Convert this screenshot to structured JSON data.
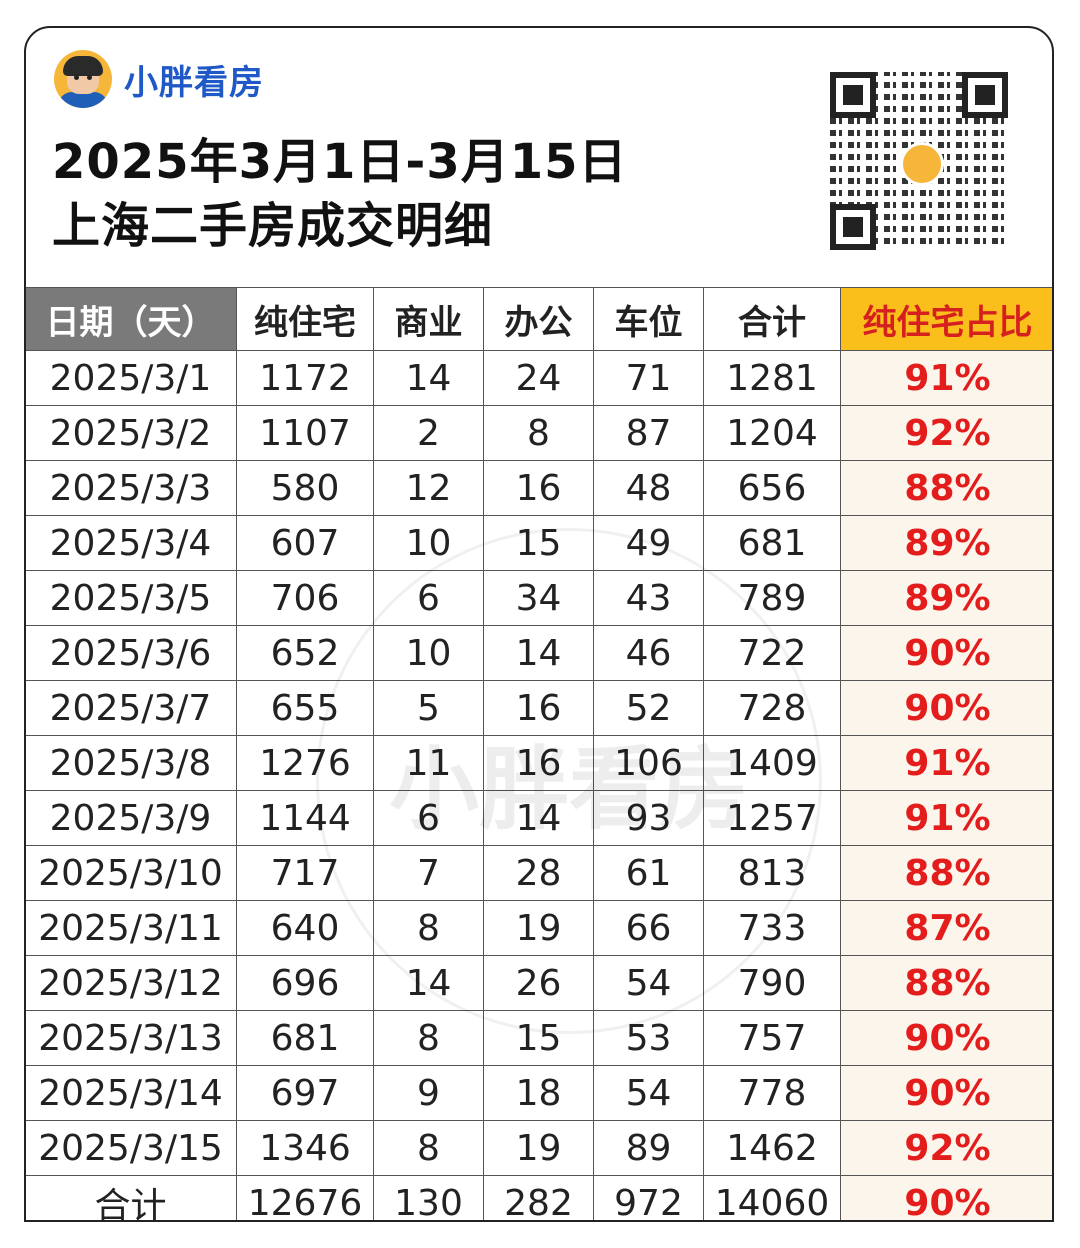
{
  "brand": {
    "name": "小胖看房",
    "avatar_icon": "cartoon-avatar-icon"
  },
  "title": {
    "line1": "2025年3月1日-3月15日",
    "line2": "上海二手房成交明细"
  },
  "qr": {
    "icon": "qr-code-icon"
  },
  "watermark": "小胖看房",
  "colors": {
    "header_gray": "#7a7a7a",
    "highlight_yellow": "#fbbf1c",
    "percent_red": "#e31c1c",
    "brand_blue": "#1f58c7"
  },
  "table": {
    "headers": [
      "日期（天）",
      "纯住宅",
      "商业",
      "办公",
      "车位",
      "合计",
      "纯住宅占比"
    ],
    "rows": [
      [
        "2025/3/1",
        "1172",
        "14",
        "24",
        "71",
        "1281",
        "91%"
      ],
      [
        "2025/3/2",
        "1107",
        "2",
        "8",
        "87",
        "1204",
        "92%"
      ],
      [
        "2025/3/3",
        "580",
        "12",
        "16",
        "48",
        "656",
        "88%"
      ],
      [
        "2025/3/4",
        "607",
        "10",
        "15",
        "49",
        "681",
        "89%"
      ],
      [
        "2025/3/5",
        "706",
        "6",
        "34",
        "43",
        "789",
        "89%"
      ],
      [
        "2025/3/6",
        "652",
        "10",
        "14",
        "46",
        "722",
        "90%"
      ],
      [
        "2025/3/7",
        "655",
        "5",
        "16",
        "52",
        "728",
        "90%"
      ],
      [
        "2025/3/8",
        "1276",
        "11",
        "16",
        "106",
        "1409",
        "91%"
      ],
      [
        "2025/3/9",
        "1144",
        "6",
        "14",
        "93",
        "1257",
        "91%"
      ],
      [
        "2025/3/10",
        "717",
        "7",
        "28",
        "61",
        "813",
        "88%"
      ],
      [
        "2025/3/11",
        "640",
        "8",
        "19",
        "66",
        "733",
        "87%"
      ],
      [
        "2025/3/12",
        "696",
        "14",
        "26",
        "54",
        "790",
        "88%"
      ],
      [
        "2025/3/13",
        "681",
        "8",
        "15",
        "53",
        "757",
        "90%"
      ],
      [
        "2025/3/14",
        "697",
        "9",
        "18",
        "54",
        "778",
        "90%"
      ],
      [
        "2025/3/15",
        "1346",
        "8",
        "19",
        "89",
        "1462",
        "92%"
      ]
    ],
    "total": [
      "合计",
      "12676",
      "130",
      "282",
      "972",
      "14060",
      "90%"
    ]
  }
}
